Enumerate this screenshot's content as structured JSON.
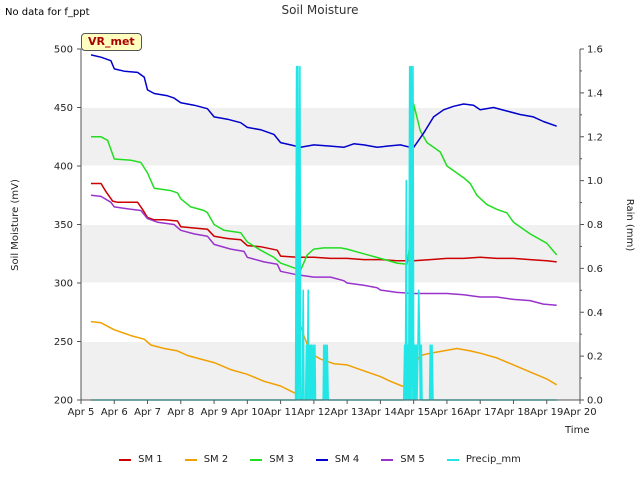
{
  "page": {
    "note": "No data for f_ppt",
    "badge": "VR_met"
  },
  "legend": [
    {
      "label": "SM 1",
      "color": "#cc0000"
    },
    {
      "label": "SM 2",
      "color": "#f0a000"
    },
    {
      "label": "SM 3",
      "color": "#22dd22"
    },
    {
      "label": "SM 4",
      "color": "#0000cc"
    },
    {
      "label": "SM 5",
      "color": "#9933cc"
    },
    {
      "label": "Precip_mm",
      "color": "#22e6e6"
    }
  ],
  "chart_data": {
    "type": "line",
    "title": "Soil Moisture",
    "xlabel": "Time",
    "ylabel": "Soil Moisture (mV)",
    "y2label": "Rain (mm)",
    "xlim": [
      5,
      20
    ],
    "ylim": [
      200,
      500
    ],
    "y2lim": [
      0,
      1.6
    ],
    "x_ticks": [
      5,
      6,
      7,
      8,
      9,
      10,
      11,
      12,
      13,
      14,
      15,
      16,
      17,
      18,
      19,
      20
    ],
    "x_tick_labels": [
      "Apr 5",
      "Apr 6",
      "Apr 7",
      "Apr 8",
      "Apr 9",
      "Apr 10",
      "Apr 11",
      "Apr 12",
      "Apr 13",
      "Apr 14",
      "Apr 15",
      "Apr 16",
      "Apr 17",
      "Apr 18",
      "Apr 19",
      "Apr 20"
    ],
    "y_ticks": [
      200,
      250,
      300,
      350,
      400,
      450,
      500
    ],
    "y2_ticks": [
      0.0,
      0.2,
      0.4,
      0.6,
      0.8,
      1.0,
      1.2,
      1.4,
      1.6
    ],
    "y2_tick_labels": [
      "0.0",
      "0.2",
      "0.4",
      "0.6",
      "0.8",
      "1.0",
      "1.2",
      "1.4",
      "1.6"
    ],
    "series": [
      {
        "name": "SM 1",
        "color": "#cc0000",
        "axis": "left",
        "x": [
          5.3,
          5.6,
          5.75,
          5.95,
          6.1,
          6.4,
          6.7,
          6.85,
          7.0,
          7.2,
          7.5,
          7.9,
          8.0,
          8.4,
          8.8,
          9.0,
          9.4,
          9.8,
          10.0,
          10.4,
          10.9,
          11.0,
          11.5,
          12.0,
          12.5,
          13.0,
          13.5,
          14.0,
          14.5,
          15.0,
          15.5,
          16.0,
          16.5,
          17.0,
          17.5,
          18.0,
          18.5,
          19.0,
          19.3
        ],
        "y": [
          385,
          385,
          378,
          370,
          369,
          369,
          369,
          363,
          356,
          354,
          354,
          353,
          348,
          347,
          346,
          340,
          338,
          337,
          332,
          331,
          328,
          323,
          322,
          322,
          321,
          321,
          320,
          320,
          319,
          319,
          320,
          321,
          321,
          322,
          321,
          321,
          320,
          319,
          318
        ]
      },
      {
        "name": "SM 2",
        "color": "#f0a000",
        "axis": "left",
        "x": [
          5.3,
          5.6,
          6.0,
          6.5,
          6.9,
          7.1,
          7.5,
          7.9,
          8.2,
          8.6,
          9.0,
          9.5,
          10.0,
          10.5,
          11.0,
          11.35,
          11.5,
          11.55,
          11.7,
          11.9,
          12.2,
          12.6,
          13.0,
          13.5,
          14.0,
          14.3,
          14.65,
          14.8,
          14.9,
          15.2,
          15.5,
          15.9,
          16.3,
          16.7,
          17.0,
          17.5,
          18.0,
          18.5,
          19.0,
          19.3
        ],
        "y": [
          267,
          266,
          260,
          255,
          252,
          247,
          244,
          242,
          238,
          235,
          232,
          226,
          222,
          216,
          212,
          207,
          205,
          268,
          255,
          240,
          235,
          231,
          230,
          225,
          220,
          216,
          212,
          211,
          223,
          238,
          240,
          242,
          244,
          242,
          240,
          236,
          230,
          224,
          218,
          213
        ]
      },
      {
        "name": "SM 3",
        "color": "#22dd22",
        "axis": "left",
        "x": [
          5.3,
          5.6,
          5.8,
          6.0,
          6.5,
          6.8,
          7.0,
          7.2,
          7.7,
          7.9,
          8.0,
          8.3,
          8.7,
          8.8,
          9.0,
          9.3,
          9.8,
          10.0,
          10.4,
          10.8,
          11.0,
          11.4,
          11.6,
          11.8,
          12.0,
          12.3,
          12.8,
          13.0,
          13.5,
          14.0,
          14.5,
          14.8,
          14.95,
          15.0,
          15.2,
          15.4,
          15.8,
          16.0,
          16.5,
          16.7,
          16.9,
          17.2,
          17.5,
          17.8,
          18.0,
          18.5,
          19.0,
          19.3
        ],
        "y": [
          425,
          425,
          422,
          406,
          405,
          403,
          394,
          381,
          379,
          377,
          372,
          365,
          362,
          360,
          350,
          345,
          343,
          335,
          328,
          322,
          317,
          313,
          311,
          324,
          329,
          330,
          330,
          329,
          325,
          321,
          317,
          316,
          345,
          453,
          430,
          420,
          412,
          400,
          390,
          385,
          375,
          367,
          363,
          360,
          352,
          342,
          334,
          324
        ]
      },
      {
        "name": "SM 4",
        "color": "#0000cc",
        "axis": "left",
        "x": [
          5.3,
          5.6,
          5.9,
          6.0,
          6.3,
          6.7,
          6.9,
          7.0,
          7.2,
          7.6,
          7.8,
          8.0,
          8.4,
          8.8,
          9.0,
          9.4,
          9.8,
          10.0,
          10.4,
          10.8,
          11.0,
          11.3,
          11.6,
          12.0,
          12.5,
          12.9,
          13.2,
          13.5,
          13.9,
          14.2,
          14.6,
          14.9,
          15.0,
          15.3,
          15.6,
          15.9,
          16.2,
          16.5,
          16.8,
          17.0,
          17.4,
          17.8,
          18.2,
          18.6,
          18.9,
          19.3
        ],
        "y": [
          495,
          493,
          490,
          483,
          481,
          480,
          476,
          465,
          462,
          460,
          458,
          454,
          452,
          449,
          442,
          440,
          437,
          433,
          431,
          427,
          420,
          418,
          416,
          418,
          417,
          416,
          419,
          418,
          416,
          417,
          418,
          416,
          416,
          428,
          442,
          448,
          451,
          453,
          452,
          448,
          450,
          447,
          444,
          442,
          438,
          434
        ]
      },
      {
        "name": "SM 5",
        "color": "#9933cc",
        "axis": "left",
        "x": [
          5.3,
          5.6,
          5.9,
          6.0,
          6.5,
          6.8,
          7.0,
          7.3,
          7.8,
          8.0,
          8.4,
          8.8,
          9.0,
          9.5,
          9.9,
          10.0,
          10.5,
          10.9,
          11.0,
          11.5,
          12.0,
          12.5,
          12.9,
          13.0,
          13.5,
          13.9,
          14.0,
          14.5,
          15.0,
          15.5,
          16.0,
          16.5,
          17.0,
          17.5,
          18.0,
          18.5,
          18.9,
          19.3
        ],
        "y": [
          375,
          374,
          369,
          365,
          363,
          362,
          355,
          352,
          350,
          345,
          342,
          340,
          333,
          329,
          327,
          322,
          318,
          316,
          310,
          307,
          305,
          305,
          302,
          300,
          298,
          296,
          294,
          292,
          291,
          291,
          291,
          290,
          288,
          288,
          286,
          285,
          282,
          281
        ]
      },
      {
        "name": "Precip_mm",
        "color": "#22e6e6",
        "axis": "right",
        "x": [
          5.3,
          11.45,
          11.48,
          11.5,
          11.52,
          11.55,
          11.58,
          11.6,
          11.63,
          11.65,
          11.68,
          11.7,
          11.73,
          11.75,
          11.78,
          11.8,
          11.83,
          11.85,
          11.88,
          11.9,
          11.93,
          11.95,
          11.98,
          12.0,
          12.03,
          12.05,
          12.08,
          12.1,
          12.13,
          12.15,
          12.18,
          12.2,
          12.23,
          12.25,
          12.28,
          12.3,
          12.33,
          12.35,
          12.38,
          12.4,
          12.43,
          14.7,
          14.73,
          14.75,
          14.78,
          14.8,
          14.83,
          14.85,
          14.88,
          14.9,
          14.93,
          14.95,
          14.98,
          15.0,
          15.03,
          15.05,
          15.08,
          15.1,
          15.13,
          15.15,
          15.18,
          15.2,
          15.23,
          15.25,
          15.28,
          15.3,
          15.33,
          15.35,
          15.38,
          15.4,
          15.43,
          15.45,
          15.48,
          15.5,
          15.53,
          15.55,
          15.58,
          19.3
        ],
        "y": [
          0,
          0,
          1.52,
          0,
          1.52,
          0,
          1.52,
          0,
          0,
          0,
          0.5,
          0,
          0,
          0,
          0.25,
          0,
          0.5,
          0,
          0.25,
          0,
          0.25,
          0,
          0.25,
          0,
          0.25,
          0,
          0,
          0,
          0,
          0,
          0,
          0,
          0,
          0,
          0,
          0.25,
          0,
          0.25,
          0,
          0.25,
          0,
          0,
          0.25,
          0,
          1.0,
          0,
          0.25,
          0,
          1.52,
          0,
          1.52,
          0,
          1.52,
          0,
          0.25,
          0,
          0.25,
          0,
          0.25,
          0.5,
          0.25,
          0,
          0.25,
          0,
          0,
          0,
          0,
          0,
          0,
          0,
          0,
          0,
          0,
          0.25,
          0,
          0.25,
          0,
          0
        ]
      }
    ]
  }
}
